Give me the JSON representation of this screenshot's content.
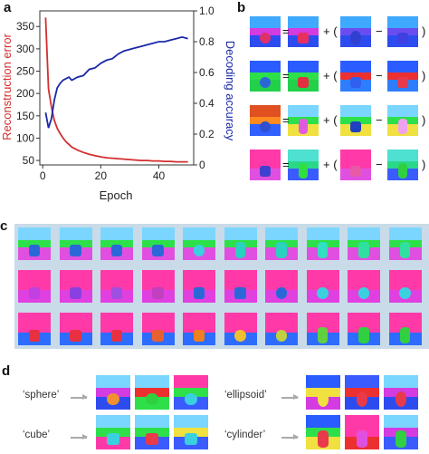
{
  "panels": {
    "a": "a",
    "b": "b",
    "c": "c",
    "d": "d"
  },
  "chart_data": {
    "type": "line",
    "xlabel": "Epoch",
    "ylabel_left": "Reconstruction error",
    "ylabel_right": "Decoding accuracy",
    "xlim": [
      -1,
      52
    ],
    "ylim_left": [
      40,
      385
    ],
    "ylim_right": [
      0,
      1.0
    ],
    "xticks": [
      "0",
      "20",
      "40"
    ],
    "yticks_left": [
      "350",
      "300",
      "250",
      "200",
      "150",
      "100",
      "50"
    ],
    "yticks_right": [
      "1.0",
      "0.8",
      "0.6",
      "0.4",
      "0.2",
      "0"
    ],
    "colors": {
      "reconstruction": "#d32f2f",
      "accuracy": "#1a2aa8"
    },
    "series": [
      {
        "axis": "left",
        "x": [
          1,
          2,
          3,
          4,
          5,
          6,
          7,
          8,
          9,
          10,
          12,
          14,
          16,
          18,
          20,
          22,
          24,
          26,
          28,
          30,
          32,
          34,
          36,
          38,
          40,
          42,
          44,
          46,
          48,
          50
        ],
        "values": [
          370,
          210,
          170,
          140,
          122,
          110,
          100,
          92,
          86,
          80,
          73,
          68,
          64,
          61,
          58,
          56,
          55,
          54,
          53,
          52,
          51,
          50,
          50,
          49,
          49,
          48,
          48,
          47,
          47,
          47
        ]
      },
      {
        "axis": "right",
        "x": [
          1,
          2,
          3,
          4,
          5,
          6,
          7,
          8,
          9,
          10,
          12,
          14,
          16,
          18,
          20,
          22,
          24,
          26,
          28,
          30,
          32,
          34,
          36,
          38,
          40,
          42,
          44,
          46,
          48,
          50
        ],
        "values": [
          0.34,
          0.24,
          0.3,
          0.42,
          0.5,
          0.53,
          0.55,
          0.56,
          0.57,
          0.55,
          0.57,
          0.58,
          0.62,
          0.63,
          0.66,
          0.68,
          0.69,
          0.72,
          0.74,
          0.75,
          0.76,
          0.77,
          0.78,
          0.79,
          0.8,
          0.8,
          0.81,
          0.82,
          0.83,
          0.82
        ]
      }
    ]
  },
  "panel_b": {
    "equals": "=",
    "plus_paren": "+ (",
    "minus": "−",
    "close": ")",
    "rows": [
      [
        {
          "sky": "#3fa8ff",
          "wall": "#d43be0",
          "floor": "#2d4cf0",
          "obj": "sphere",
          "color": "#e0306a"
        },
        {
          "sky": "#3fa8ff",
          "wall": "#d43be0",
          "floor": "#2d4cf0",
          "obj": "cube",
          "color": "#e83060"
        },
        {
          "sky": "#3fa8ff",
          "wall": "#6a4df0",
          "floor": "#2d4cf0",
          "obj": "ellipsoid",
          "color": "#3040d0"
        },
        {
          "sky": "#3fa8ff",
          "wall": "#6a4df0",
          "floor": "#2d4cf0",
          "obj": "cube",
          "color": "#4040e0"
        }
      ],
      [
        {
          "sky": "#2b5cff",
          "wall": "#2de04a",
          "floor": "#22d04a",
          "obj": "sphere",
          "color": "#2a68d8"
        },
        {
          "sky": "#2b5cff",
          "wall": "#2de04a",
          "floor": "#22d04a",
          "obj": "cube",
          "color": "#e03040"
        },
        {
          "sky": "#2b5cff",
          "wall": "#ec3030",
          "floor": "#2f7dff",
          "obj": "cube",
          "color": "#3060f0"
        },
        {
          "sky": "#2b5cff",
          "wall": "#ec3030",
          "floor": "#2f7dff",
          "obj": "cube",
          "color": "#e83a4a"
        }
      ],
      [
        {
          "sky": "#e05020",
          "wall": "#ff8a20",
          "floor": "#3060ff",
          "obj": "sphere",
          "color": "#3050d0"
        },
        {
          "sky": "#7bd6ff",
          "wall": "#2de04a",
          "floor": "#f0e040",
          "obj": "cylinder",
          "color": "#e05ae0"
        },
        {
          "sky": "#7bd6ff",
          "wall": "#2de04a",
          "floor": "#f0e040",
          "obj": "cube",
          "color": "#2040c0"
        },
        {
          "sky": "#7bd6ff",
          "wall": "#2de04a",
          "floor": "#f0e040",
          "obj": "cylinder",
          "color": "#f0a0f0"
        }
      ],
      [
        {
          "sky": "#ff3aa8",
          "wall": "#ff3aa8",
          "floor": "#e050e0",
          "obj": "cube",
          "color": "#4040d0"
        },
        {
          "sky": "#4ee0d0",
          "wall": "#2ad88a",
          "floor": "#3a5cff",
          "obj": "cylinder",
          "color": "#30e040"
        },
        {
          "sky": "#ff3aa8",
          "wall": "#ff3aa8",
          "floor": "#e050e0",
          "obj": "cube",
          "color": "#e85aa8"
        },
        {
          "sky": "#4ee0d0",
          "wall": "#2ad88a",
          "floor": "#3a5cff",
          "obj": "cylinder",
          "color": "#30d040"
        }
      ]
    ]
  },
  "panel_c": {
    "rows": [
      {
        "sky": "#7bd6ff",
        "wall": "#2de04a",
        "floor": "#e050e0",
        "objs": [
          [
            "cube",
            "#2a68d8"
          ],
          [
            "cube",
            "#2a68d8"
          ],
          [
            "cube",
            "#2a68d8"
          ],
          [
            "cube",
            "#2a68d8"
          ],
          [
            "sphere",
            "#3ad0e0"
          ],
          [
            "cylinder",
            "#2ad0c0"
          ],
          [
            "cylinder",
            "#2ad0c0"
          ],
          [
            "cylinder",
            "#30e0c0"
          ],
          [
            "cylinder",
            "#30e0a0"
          ],
          [
            "cylinder",
            "#30e0a0"
          ]
        ]
      },
      {
        "sky": "#ff3aa8",
        "wall": "#ff3aa8",
        "floor": "#e040e0",
        "objs": [
          [
            "cube",
            "#c040e0"
          ],
          [
            "cube",
            "#8a40e0"
          ],
          [
            "cube",
            "#a050e0"
          ],
          [
            "cube",
            "#c040c0"
          ],
          [
            "cube",
            "#2a68d8"
          ],
          [
            "cube",
            "#2a68d8"
          ],
          [
            "sphere",
            "#2a68d8"
          ],
          [
            "sphere",
            "#3ad0e0"
          ],
          [
            "sphere",
            "#3ad0e0"
          ],
          [
            "sphere",
            "#3ad0e0"
          ]
        ]
      },
      {
        "sky": "#ff3aa8",
        "wall": "#ff3aa8",
        "floor": "#2d6cff",
        "objs": [
          [
            "cube",
            "#e83040"
          ],
          [
            "cube",
            "#e83040"
          ],
          [
            "cube",
            "#e83040"
          ],
          [
            "cube",
            "#e86030"
          ],
          [
            "cube",
            "#f08020"
          ],
          [
            "sphere",
            "#f0c030"
          ],
          [
            "sphere",
            "#c0d040"
          ],
          [
            "cylinder",
            "#60d040"
          ],
          [
            "cylinder",
            "#30d040"
          ],
          [
            "cylinder",
            "#30d040"
          ]
        ]
      }
    ]
  },
  "panel_d": {
    "groups": [
      {
        "word": "‘sphere’",
        "imgs": [
          {
            "sky": "#7bd6ff",
            "wall": "#d43be0",
            "floor": "#2d4cf0",
            "obj": "sphere",
            "color": "#f09030"
          },
          {
            "sky": "#7bd6ff",
            "wall": "#ec3030",
            "floor": "#2de04a",
            "obj": "sphere",
            "color": "#30d040"
          },
          {
            "sky": "#ff3aa8",
            "wall": "#2de04a",
            "floor": "#3a5cff",
            "obj": "sphere",
            "color": "#3ad0e0"
          }
        ]
      },
      {
        "word": "‘ellipsoid’",
        "imgs": [
          {
            "sky": "#2b5cff",
            "wall": "#f0e040",
            "floor": "#d43be0",
            "obj": "ellipsoid",
            "color": "#f0e040"
          },
          {
            "sky": "#3a5cff",
            "wall": "#ec3030",
            "floor": "#2d4cf0",
            "obj": "ellipsoid",
            "color": "#e83a4a"
          },
          {
            "sky": "#7bd6ff",
            "wall": "#d43be0",
            "floor": "#2d4cf0",
            "obj": "ellipsoid",
            "color": "#e83a4a"
          }
        ]
      },
      {
        "word": "‘cube’",
        "imgs": [
          {
            "sky": "#7bd6ff",
            "wall": "#2de04a",
            "floor": "#ff3aa8",
            "obj": "cube",
            "color": "#3ad0e0"
          },
          {
            "sky": "#7bd6ff",
            "wall": "#2de04a",
            "floor": "#3a5cff",
            "obj": "cube",
            "color": "#e83a4a"
          },
          {
            "sky": "#7bd6ff",
            "wall": "#f0e040",
            "floor": "#3a5cff",
            "obj": "cube",
            "color": "#3ad0e0"
          }
        ]
      },
      {
        "word": "‘cylinder’",
        "imgs": [
          {
            "sky": "#2b5cff",
            "wall": "#2de04a",
            "floor": "#f0e040",
            "obj": "cylinder",
            "color": "#e83a4a"
          },
          {
            "sky": "#ff3aa8",
            "wall": "#ff3aa8",
            "floor": "#ec3030",
            "obj": "cylinder",
            "color": "#e050e0"
          },
          {
            "sky": "#7bd6ff",
            "wall": "#d43be0",
            "floor": "#3a5cff",
            "obj": "cylinder",
            "color": "#30d040"
          }
        ]
      }
    ]
  }
}
